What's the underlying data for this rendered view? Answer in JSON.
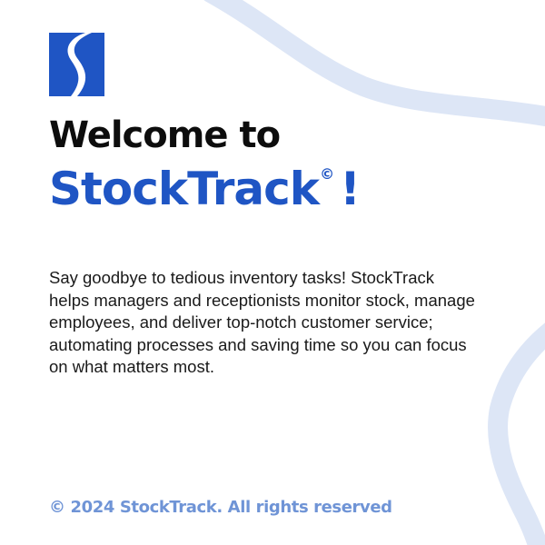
{
  "logo": {
    "icon": "s-ribbon-logo-icon",
    "color": "#1f55c4"
  },
  "heading": {
    "line1": "Welcome to",
    "brand": "StockTrack",
    "copyright_symbol": "©",
    "exclamation": "!"
  },
  "description": "Say goodbye to tedious inventory tasks! StockTrack helps managers and receptionists monitor stock, manage employees, and deliver top-notch customer service; automating processes and saving time so you can focus on what matters most.",
  "footer": {
    "text": "© 2024 StockTrack. All rights reserved"
  },
  "colors": {
    "brand_blue": "#1f55c4",
    "heading_dark": "#0d0d0d",
    "footer_blue": "#6f94d6",
    "wave_light": "#dde6f6"
  }
}
